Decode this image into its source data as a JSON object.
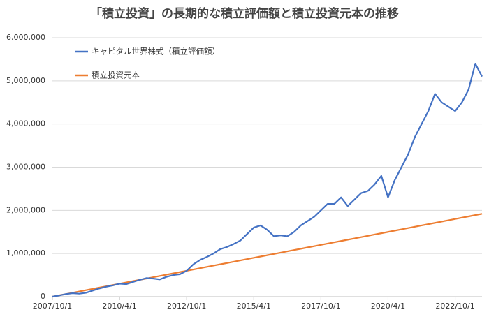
{
  "chart_data": {
    "type": "line",
    "title": "「積立投資」の長期的な積立評価額と積立投資元本の推移",
    "x": [
      "2007/10/1",
      "2008/1/1",
      "2008/4/1",
      "2008/7/1",
      "2008/10/1",
      "2009/1/1",
      "2009/4/1",
      "2009/7/1",
      "2009/10/1",
      "2010/1/1",
      "2010/4/1",
      "2010/7/1",
      "2010/10/1",
      "2011/1/1",
      "2011/4/1",
      "2011/7/1",
      "2011/10/1",
      "2012/1/1",
      "2012/4/1",
      "2012/7/1",
      "2012/10/1",
      "2013/1/1",
      "2013/4/1",
      "2013/7/1",
      "2013/10/1",
      "2014/1/1",
      "2014/4/1",
      "2014/7/1",
      "2014/10/1",
      "2015/1/1",
      "2015/4/1",
      "2015/7/1",
      "2015/10/1",
      "2016/1/1",
      "2016/4/1",
      "2016/7/1",
      "2016/10/1",
      "2017/1/1",
      "2017/4/1",
      "2017/7/1",
      "2017/10/1",
      "2018/1/1",
      "2018/4/1",
      "2018/7/1",
      "2018/10/1",
      "2019/1/1",
      "2019/4/1",
      "2019/7/1",
      "2019/10/1",
      "2020/1/1",
      "2020/4/1",
      "2020/7/1",
      "2020/10/1",
      "2021/1/1",
      "2021/4/1",
      "2021/7/1",
      "2021/10/1",
      "2022/1/1",
      "2022/4/1",
      "2022/7/1",
      "2022/10/1",
      "2023/1/1",
      "2023/4/1",
      "2023/7/1",
      "2023/10/1"
    ],
    "series": [
      {
        "name": "キャピタル世界株式（積立評価額）",
        "color": "#4472c4",
        "values": [
          0,
          28000,
          60000,
          80000,
          70000,
          90000,
          140000,
          190000,
          230000,
          260000,
          300000,
          290000,
          340000,
          390000,
          430000,
          420000,
          400000,
          460000,
          500000,
          520000,
          600000,
          750000,
          850000,
          920000,
          1000000,
          1100000,
          1150000,
          1220000,
          1300000,
          1450000,
          1600000,
          1650000,
          1550000,
          1400000,
          1420000,
          1400000,
          1500000,
          1650000,
          1750000,
          1850000,
          2000000,
          2150000,
          2150000,
          2300000,
          2100000,
          2250000,
          2400000,
          2450000,
          2600000,
          2800000,
          2300000,
          2700000,
          3000000,
          3300000,
          3700000,
          4000000,
          4300000,
          4700000,
          4500000,
          4400000,
          4300000,
          4500000,
          4800000,
          5400000,
          5100000
        ]
      },
      {
        "name": "積立投資元本",
        "color": "#ed7d31",
        "values": [
          0,
          30000,
          60000,
          90000,
          120000,
          150000,
          180000,
          210000,
          240000,
          270000,
          300000,
          330000,
          360000,
          390000,
          420000,
          450000,
          480000,
          510000,
          540000,
          570000,
          600000,
          630000,
          660000,
          690000,
          720000,
          750000,
          780000,
          810000,
          840000,
          870000,
          900000,
          930000,
          960000,
          990000,
          1020000,
          1050000,
          1080000,
          1110000,
          1140000,
          1170000,
          1200000,
          1230000,
          1260000,
          1290000,
          1320000,
          1350000,
          1380000,
          1410000,
          1440000,
          1470000,
          1500000,
          1530000,
          1560000,
          1590000,
          1620000,
          1650000,
          1680000,
          1710000,
          1740000,
          1770000,
          1800000,
          1830000,
          1860000,
          1890000,
          1920000
        ]
      }
    ],
    "xlim": [
      "2007/10/1",
      "2023/10/1"
    ],
    "xticks": [
      "2007/10/1",
      "2010/4/1",
      "2012/10/1",
      "2015/4/1",
      "2017/10/1",
      "2020/4/1",
      "2022/10/1"
    ],
    "ylim": [
      0,
      6000000
    ],
    "yticks": [
      0,
      {
        "value": 1000000,
        "label": "1,000,000"
      },
      {
        "value": 2000000,
        "label": "2,000,000"
      },
      {
        "value": 3000000,
        "label": "3,000,000"
      },
      {
        "value": 4000000,
        "label": "4,000,000"
      },
      {
        "value": 5000000,
        "label": "5,000,000"
      },
      {
        "value": 6000000,
        "label": "6,000,000"
      }
    ],
    "grid": true,
    "legend": "upper left"
  }
}
